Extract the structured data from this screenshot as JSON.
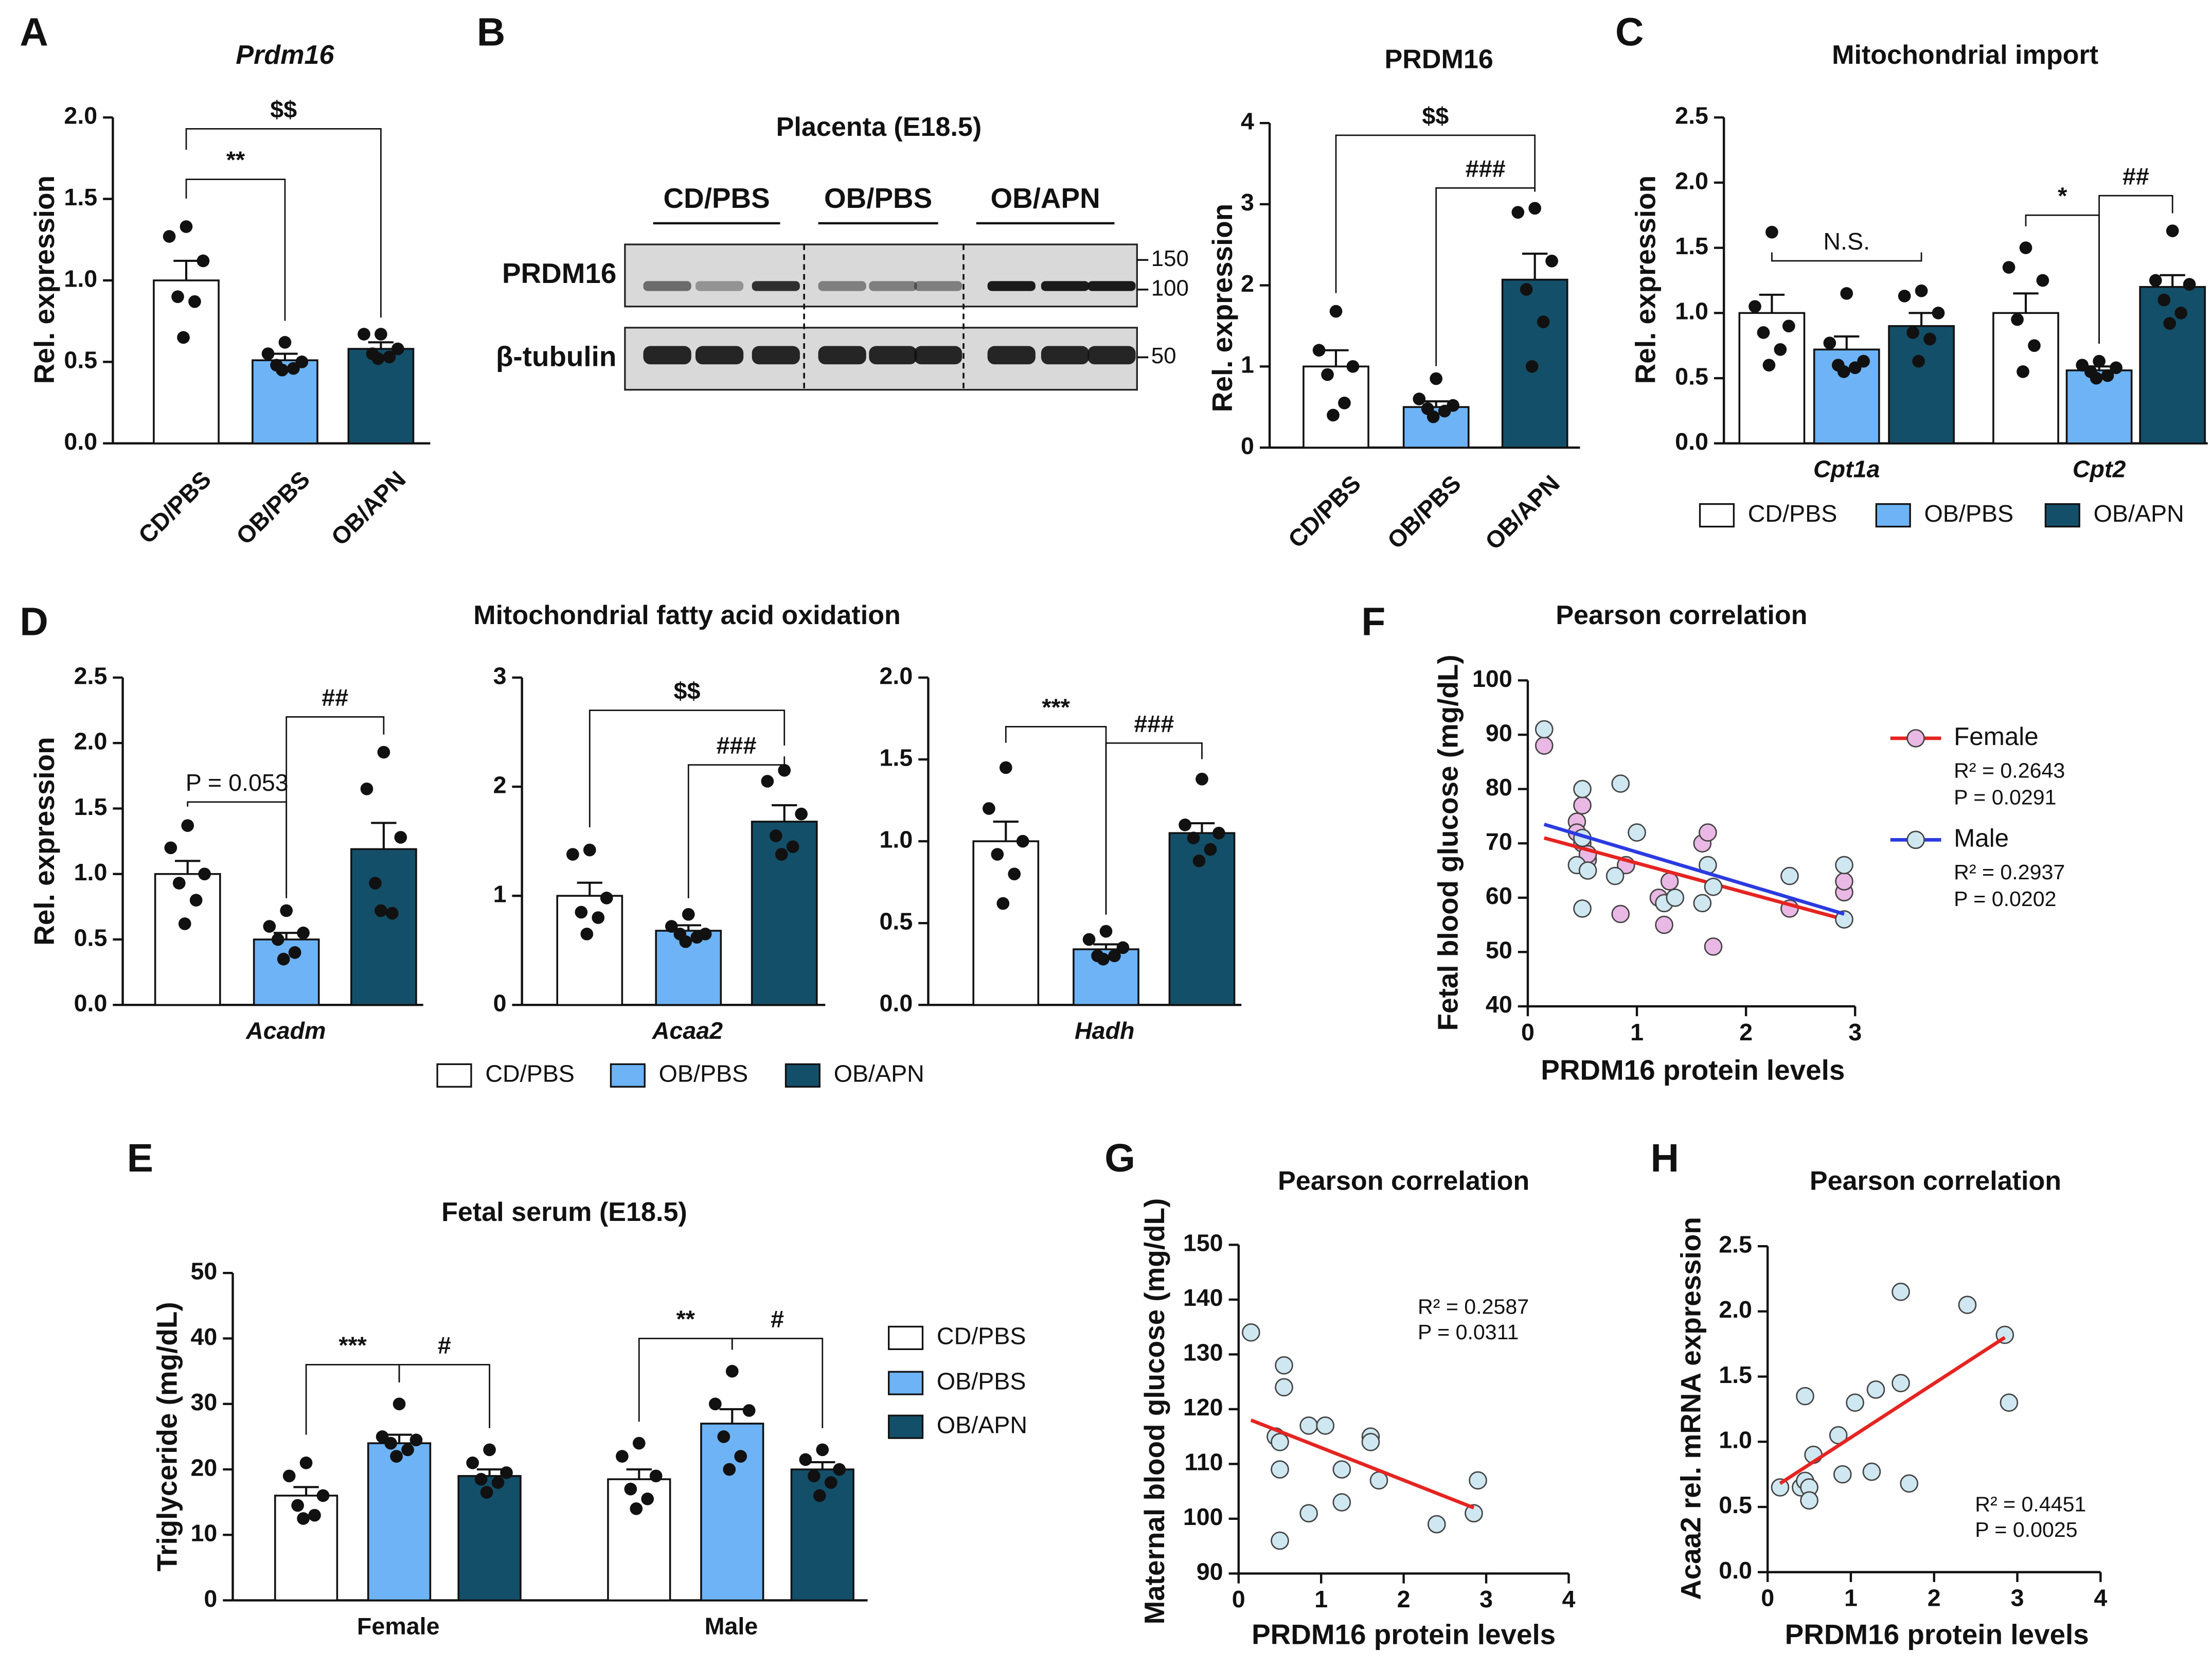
{
  "chart_data": [
    {
      "type": "bar",
      "panel": "A",
      "title": "Prdm16",
      "ylabel": "Rel. expression",
      "categories": [
        "CD/PBS",
        "OB/PBS",
        "OB/APN"
      ],
      "values": [
        1.0,
        0.51,
        0.58
      ],
      "errors": [
        0.12,
        0.04,
        0.04
      ],
      "colors": [
        "#ffffff",
        "#6db3f5",
        "#144f69"
      ],
      "points": [
        [
          1.33,
          1.27,
          1.12,
          0.9,
          0.87,
          0.65
        ],
        [
          0.62,
          0.55,
          0.5,
          0.48,
          0.46,
          0.45
        ],
        [
          0.67,
          0.67,
          0.58,
          0.55,
          0.53,
          0.52
        ]
      ],
      "ylim": [
        0,
        2
      ],
      "yticks": [
        {
          "value": 0,
          "label": "0.0"
        },
        0.5,
        {
          "value": 1,
          "label": "1.0"
        },
        1.5,
        {
          "value": 2,
          "label": "2.0"
        }
      ],
      "annotations": [
        "**",
        "$$"
      ]
    },
    {
      "type": "bar",
      "panel": "B",
      "title": "PRDM16",
      "ylabel": "Rel. expression",
      "categories": [
        "CD/PBS",
        "OB/PBS",
        "OB/APN"
      ],
      "values": [
        1.0,
        0.5,
        2.07
      ],
      "errors": [
        0.2,
        0.07,
        0.32
      ],
      "colors": [
        "#ffffff",
        "#6db3f5",
        "#144f69"
      ],
      "points": [
        [
          1.68,
          1.2,
          1.0,
          0.9,
          0.55,
          0.4
        ],
        [
          0.85,
          0.6,
          0.52,
          0.48,
          0.45,
          0.38
        ],
        [
          2.95,
          2.9,
          2.3,
          1.95,
          1.55,
          1.0
        ]
      ],
      "ylim": [
        0,
        4
      ],
      "yticks": [
        0,
        1,
        2,
        3,
        4
      ],
      "annotations": [
        "$$",
        "###"
      ]
    },
    {
      "type": "bar",
      "panel": "C",
      "title": "Mitochondrial import",
      "ylabel": "Rel. expression",
      "categories": [
        "Cpt1a",
        "Cpt2"
      ],
      "series": [
        {
          "name": "CD/PBS",
          "color": "#ffffff",
          "values": [
            1.0,
            1.0
          ],
          "errors": [
            0.14,
            0.15
          ],
          "points": [
            [
              1.62,
              1.05,
              0.9,
              0.85,
              0.72,
              0.6
            ],
            [
              1.5,
              1.35,
              1.25,
              0.95,
              0.75,
              0.55
            ]
          ]
        },
        {
          "name": "OB/PBS",
          "color": "#6db3f5",
          "values": [
            0.72,
            0.56
          ],
          "errors": [
            0.1,
            0.03
          ],
          "points": [
            [
              1.15,
              0.77,
              0.63,
              0.6,
              0.58,
              0.55
            ],
            [
              0.63,
              0.6,
              0.58,
              0.55,
              0.52,
              0.5
            ]
          ]
        },
        {
          "name": "OB/APN",
          "color": "#144f69",
          "values": [
            0.9,
            1.2
          ],
          "errors": [
            0.1,
            0.09
          ],
          "points": [
            [
              1.17,
              1.13,
              1.0,
              0.85,
              0.8,
              0.63
            ],
            [
              1.63,
              1.25,
              1.22,
              1.1,
              1.0,
              0.92
            ]
          ]
        }
      ],
      "ylim": [
        0,
        2.5
      ],
      "yticks": [
        {
          "value": 0,
          "label": "0.0"
        },
        0.5,
        {
          "value": 1,
          "label": "1.0"
        },
        1.5,
        {
          "value": 2,
          "label": "2.0"
        },
        2.5
      ],
      "annotations": [
        "N.S.",
        "*",
        "##"
      ]
    },
    {
      "type": "bar",
      "panel": "D",
      "title": "Mitochondrial fatty acid oxidation",
      "ylabel": "Rel. expression",
      "categories": [
        "Acadm"
      ],
      "series": [
        {
          "name": "CD/PBS",
          "color": "#ffffff",
          "values": [
            1.0
          ],
          "errors": [
            0.1
          ],
          "points": [
            [
              1.37,
              1.2,
              1.0,
              0.93,
              0.8,
              0.62
            ]
          ]
        },
        {
          "name": "OB/PBS",
          "color": "#6db3f5",
          "values": [
            0.5
          ],
          "errors": [
            0.05
          ],
          "points": [
            [
              0.72,
              0.6,
              0.55,
              0.5,
              0.4,
              0.35
            ]
          ]
        },
        {
          "name": "OB/APN",
          "color": "#144f69",
          "values": [
            1.19
          ],
          "errors": [
            0.2
          ],
          "points": [
            [
              1.93,
              1.65,
              1.28,
              0.93,
              0.7,
              0.72
            ]
          ]
        }
      ],
      "ylim": [
        0,
        2.5
      ],
      "yticks": [
        {
          "value": 0,
          "label": "0.0"
        },
        0.5,
        {
          "value": 1,
          "label": "1.0"
        },
        1.5,
        {
          "value": 2,
          "label": "2.0"
        },
        2.5
      ],
      "annotations": [
        "P = 0.053",
        "##"
      ]
    },
    {
      "type": "bar",
      "categories": [
        "Acaa2"
      ],
      "series": [
        {
          "color": "#ffffff",
          "values": [
            1.0
          ],
          "errors": [
            0.12
          ],
          "points": [
            [
              1.42,
              1.38,
              0.98,
              0.85,
              0.8,
              0.65
            ]
          ]
        },
        {
          "color": "#6db3f5",
          "values": [
            0.68
          ],
          "errors": [
            0.05
          ],
          "points": [
            [
              0.83,
              0.72,
              0.65,
              0.65,
              0.62,
              0.58
            ]
          ]
        },
        {
          "color": "#144f69",
          "values": [
            1.68
          ],
          "errors": [
            0.15
          ],
          "points": [
            [
              2.15,
              2.05,
              1.75,
              1.55,
              1.45,
              1.38
            ]
          ]
        }
      ],
      "ylim": [
        0,
        3
      ],
      "yticks": [
        0,
        1,
        2,
        3
      ],
      "annotations": [
        "$$",
        "###"
      ]
    },
    {
      "type": "bar",
      "categories": [
        "Hadh"
      ],
      "series": [
        {
          "color": "#ffffff",
          "values": [
            1.0
          ],
          "errors": [
            0.12
          ],
          "points": [
            [
              1.45,
              1.2,
              1.0,
              0.92,
              0.8,
              0.62
            ]
          ]
        },
        {
          "color": "#6db3f5",
          "values": [
            0.34
          ],
          "errors": [
            0.03
          ],
          "points": [
            [
              0.45,
              0.4,
              0.35,
              0.3,
              0.3,
              0.28
            ]
          ]
        },
        {
          "color": "#144f69",
          "values": [
            1.05
          ],
          "errors": [
            0.06
          ],
          "points": [
            [
              1.38,
              1.1,
              1.05,
              1.02,
              0.95,
              0.88
            ]
          ]
        }
      ],
      "ylim": [
        0,
        2
      ],
      "yticks": [
        {
          "value": 0,
          "label": "0.0"
        },
        0.5,
        {
          "value": 1,
          "label": "1.0"
        },
        1.5,
        {
          "value": 2,
          "label": "2.0"
        }
      ],
      "annotations": [
        "***",
        "###"
      ]
    },
    {
      "type": "bar",
      "panel": "E",
      "title": "Fetal serum (E18.5)",
      "ylabel": "Triglyceride (mg/dL)",
      "categories": [
        "Female",
        "Male"
      ],
      "series": [
        {
          "name": "CD/PBS",
          "color": "#ffffff",
          "values": [
            16,
            18.5
          ],
          "errors": [
            1.3,
            1.5
          ],
          "points": [
            [
              21,
              19,
              16,
              14.5,
              13,
              12.5
            ],
            [
              24,
              22,
              19,
              17,
              15.5,
              14
            ]
          ]
        },
        {
          "name": "OB/PBS",
          "color": "#6db3f5",
          "values": [
            24,
            27
          ],
          "errors": [
            1.3,
            2.2
          ],
          "points": [
            [
              30,
              25,
              24.5,
              24,
              23,
              22
            ],
            [
              35,
              30,
              29,
              25,
              22,
              20
            ]
          ]
        },
        {
          "name": "OB/APN",
          "color": "#144f69",
          "values": [
            19,
            20
          ],
          "errors": [
            1,
            1.1
          ],
          "points": [
            [
              23,
              21,
              19.5,
              18.5,
              18,
              16.5
            ],
            [
              23,
              21.5,
              20,
              19,
              18,
              16
            ]
          ]
        }
      ],
      "ylim": [
        0,
        50
      ],
      "yticks": [
        0,
        10,
        20,
        30,
        40,
        50
      ],
      "annotations": [
        "***",
        "#",
        "**",
        "#"
      ]
    },
    {
      "type": "scatter",
      "panel": "F",
      "title": "Pearson correlation",
      "xlabel": "PRDM16 protein levels",
      "ylabel": "Fetal blood glucose (mg/dL)",
      "xlim": [
        0,
        3
      ],
      "xticks": [
        0,
        1,
        2,
        3
      ],
      "ylim": [
        40,
        100
      ],
      "yticks": [
        40,
        50,
        60,
        70,
        80,
        90,
        100
      ],
      "series": [
        {
          "name": "Female",
          "color": "#eab8e4",
          "line_color": "#e52421",
          "stats": [
            "R² = 0.2643",
            "P = 0.0291"
          ],
          "x": [
            0.15,
            0.45,
            0.5,
            0.5,
            0.55,
            0.9,
            0.85,
            1.2,
            1.25,
            1.3,
            1.6,
            1.65,
            1.7,
            2.4,
            2.9,
            2.9,
            0.45,
            0.55
          ],
          "y": [
            88,
            74,
            77,
            70,
            67,
            66,
            57,
            60,
            55,
            63,
            70,
            72,
            51,
            58,
            61,
            63,
            72,
            68
          ],
          "fit": {
            "x": [
              0.15,
              2.9
            ],
            "y": [
              71,
              56
            ]
          }
        },
        {
          "name": "Male",
          "color": "#cfe7f1",
          "line_color": "#2b3be0",
          "stats": [
            "R² = 0.2937",
            "P = 0.0202"
          ],
          "x": [
            0.15,
            0.5,
            0.45,
            0.5,
            0.85,
            1.0,
            0.8,
            1.25,
            1.35,
            1.6,
            1.7,
            1.65,
            2.4,
            2.9,
            2.9,
            0.5,
            0.55
          ],
          "y": [
            91,
            80,
            66,
            58,
            81,
            72,
            64,
            59,
            60,
            59,
            62,
            66,
            64,
            66,
            56,
            71,
            65
          ],
          "fit": {
            "x": [
              0.15,
              2.9
            ],
            "y": [
              73.5,
              57
            ]
          }
        }
      ]
    },
    {
      "type": "scatter",
      "panel": "G",
      "title": "Pearson correlation",
      "xlabel": "PRDM16 protein levels",
      "ylabel": "Maternal blood glucose (mg/dL)",
      "xlim": [
        0,
        4
      ],
      "xticks": [
        0,
        1,
        2,
        3,
        4
      ],
      "ylim": [
        90,
        150
      ],
      "yticks": [
        90,
        100,
        110,
        120,
        130,
        140,
        150
      ],
      "series": [
        {
          "color": "#cfe7f1",
          "line_color": "#e52421",
          "stats": [
            "R² = 0.2587",
            "P = 0.0311"
          ],
          "x": [
            0.15,
            0.45,
            0.5,
            0.5,
            0.5,
            0.55,
            0.55,
            0.85,
            0.85,
            1.05,
            1.25,
            1.25,
            1.6,
            1.6,
            1.7,
            2.4,
            2.9,
            2.85
          ],
          "y": [
            134,
            115,
            114,
            109,
            96,
            128,
            124,
            117,
            101,
            117,
            103,
            109,
            115,
            114,
            107,
            99,
            107,
            101
          ],
          "fit": {
            "x": [
              0.15,
              2.85
            ],
            "y": [
              118,
              102
            ]
          }
        }
      ]
    },
    {
      "type": "scatter",
      "panel": "H",
      "title": "Pearson correlation",
      "xlabel": "PRDM16 protein levels",
      "ylabel": "Acaa2 rel. mRNA expression",
      "xlim": [
        0,
        4
      ],
      "xticks": [
        0,
        1,
        2,
        3,
        4
      ],
      "ylim": [
        0,
        2.5
      ],
      "yticks": [
        {
          "value": 0,
          "label": "0.0"
        },
        0.5,
        {
          "value": 1,
          "label": "1.0"
        },
        1.5,
        {
          "value": 2,
          "label": "2.0"
        },
        2.5
      ],
      "series": [
        {
          "color": "#cfe7f1",
          "line_color": "#e52421",
          "stats": [
            "R² = 0.4451",
            "P = 0.0025"
          ],
          "x": [
            0.15,
            0.4,
            0.45,
            0.45,
            0.5,
            0.5,
            0.55,
            0.85,
            0.9,
            1.05,
            1.25,
            1.3,
            1.6,
            1.6,
            1.7,
            2.4,
            2.85,
            2.9
          ],
          "y": [
            0.65,
            0.65,
            1.35,
            0.7,
            0.65,
            0.55,
            0.9,
            1.05,
            0.75,
            1.3,
            0.77,
            1.4,
            1.45,
            2.15,
            0.68,
            2.05,
            1.82,
            1.3
          ],
          "fit": {
            "x": [
              0.15,
              2.85
            ],
            "y": [
              0.68,
              1.8
            ]
          }
        }
      ]
    }
  ],
  "blot": {
    "title": "Placenta (E18.5)",
    "groups": [
      "CD/PBS",
      "OB/PBS",
      "OB/APN"
    ],
    "rows": [
      "PRDM16",
      "β-tubulin"
    ],
    "markers": [
      150,
      100,
      50
    ]
  }
}
